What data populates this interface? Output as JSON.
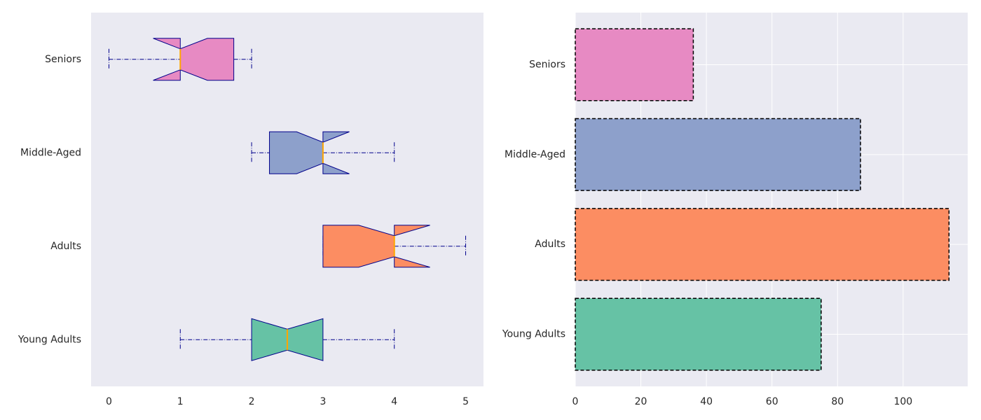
{
  "chart_data": [
    {
      "type": "boxplot",
      "categories": [
        "Young Adults",
        "Adults",
        "Middle-Aged",
        "Seniors"
      ],
      "boxes": [
        {
          "whislo": 1,
          "q1": 2,
          "med": 2.5,
          "q3": 3,
          "whishi": 4,
          "notch_lo": 2,
          "notch_hi": 3
        },
        {
          "whislo": 3,
          "q1": 3,
          "med": 4,
          "q3": 4,
          "whishi": 5,
          "notch_lo": 3.5,
          "notch_hi": 4.5
        },
        {
          "whislo": 2,
          "q1": 2.25,
          "med": 3,
          "q3": 3,
          "whishi": 4,
          "notch_lo": 2.63,
          "notch_hi": 3.37
        },
        {
          "whislo": 0,
          "q1": 1,
          "med": 1,
          "q3": 1.75,
          "whishi": 2,
          "notch_lo": 0.62,
          "notch_hi": 1.38
        }
      ],
      "colors": [
        "#66c2a5",
        "#fc8d62",
        "#8da0cb",
        "#e78ac3"
      ],
      "edge_color": "#00008b",
      "median_color": "#ffa500",
      "xlim": [
        -0.25,
        5.25
      ],
      "xticks": [
        0,
        1,
        2,
        3,
        4,
        5
      ],
      "grid": false
    },
    {
      "type": "bar",
      "orientation": "horizontal",
      "categories": [
        "Young Adults",
        "Adults",
        "Middle-Aged",
        "Seniors"
      ],
      "values": [
        75,
        114,
        87,
        36
      ],
      "colors": [
        "#66c2a5",
        "#fc8d62",
        "#8da0cb",
        "#e78ac3"
      ],
      "edge_color": "#000000",
      "xlim": [
        0,
        119.7
      ],
      "xticks": [
        0,
        20,
        40,
        60,
        80,
        100
      ],
      "grid": true
    }
  ]
}
